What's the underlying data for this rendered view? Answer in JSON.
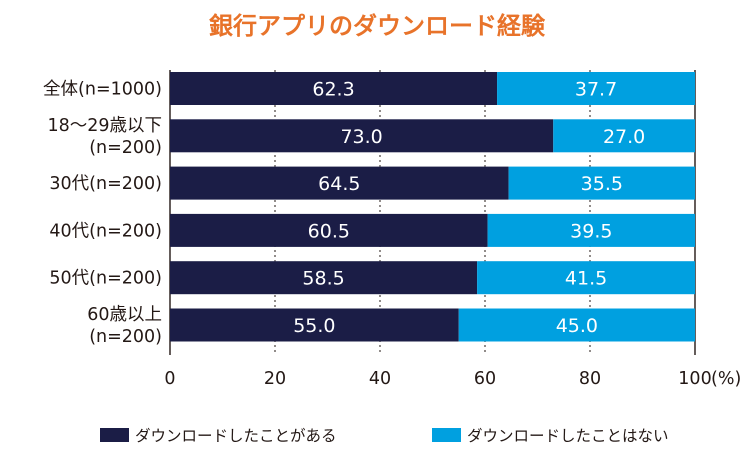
{
  "chart_data": {
    "type": "bar",
    "orientation": "horizontal",
    "stacked": true,
    "title": "銀行アプリのダウンロード経験",
    "categories": [
      [
        "全体(n=1000)"
      ],
      [
        "18〜29歳以下",
        "(n=200)"
      ],
      [
        "30代(n=200)"
      ],
      [
        "40代(n=200)"
      ],
      [
        "50代(n=200)"
      ],
      [
        "60歳以上",
        "(n=200)"
      ]
    ],
    "series": [
      {
        "name": "ダウンロードしたことがある",
        "values": [
          62.3,
          73.0,
          64.5,
          60.5,
          58.5,
          55.0
        ],
        "labels": [
          "62.3",
          "73.0",
          "64.5",
          "60.5",
          "58.5",
          "55.0"
        ]
      },
      {
        "name": "ダウンロードしたことはない",
        "values": [
          37.7,
          27.0,
          35.5,
          39.5,
          41.5,
          45.0
        ],
        "labels": [
          "37.7",
          "27.0",
          "35.5",
          "39.5",
          "41.5",
          "45.0"
        ]
      }
    ],
    "xlim": [
      0,
      100
    ],
    "xticks": [
      "0",
      "20",
      "40",
      "60",
      "80",
      "100"
    ],
    "xunit": "(%)",
    "grid": true,
    "legend": "bottom"
  },
  "colors": {
    "title": "#e8732a",
    "series1": "#1b1d46",
    "series2": "#00a0e0",
    "grid": "#231815",
    "text": "#231815"
  }
}
